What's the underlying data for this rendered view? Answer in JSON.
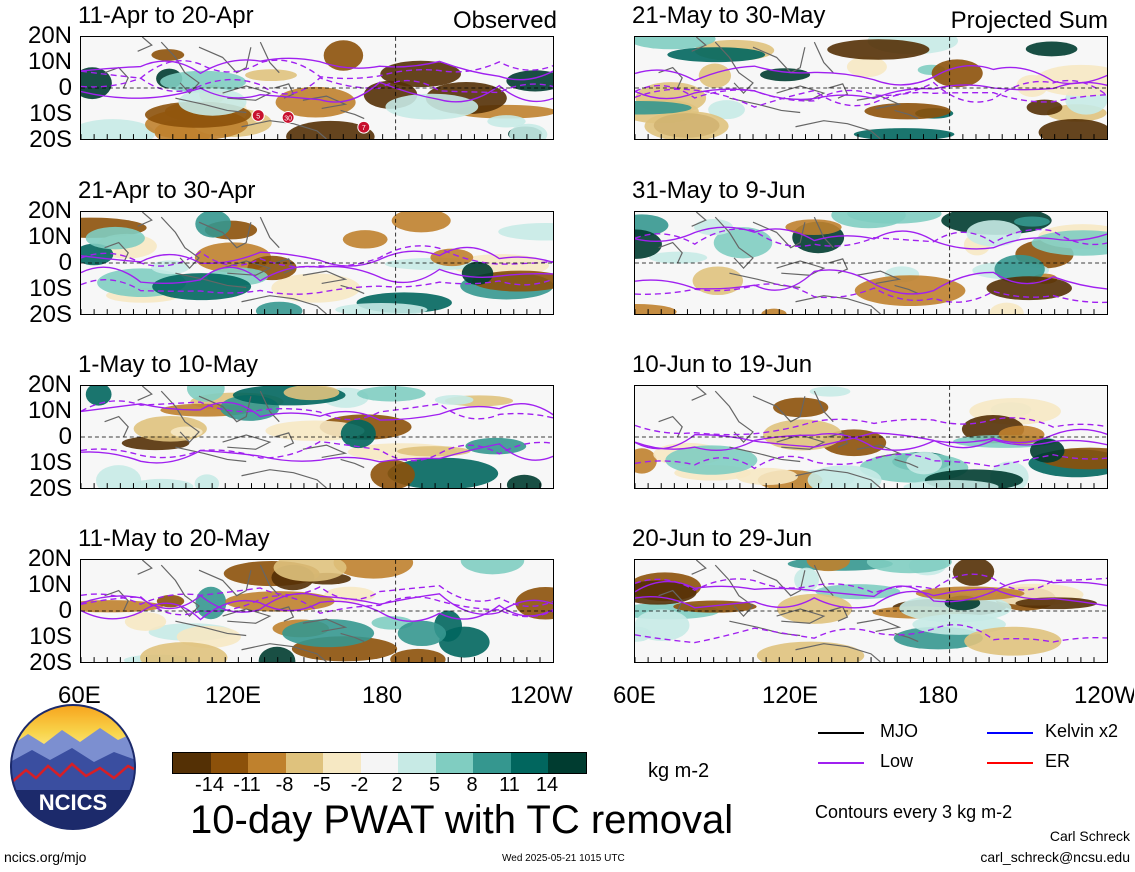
{
  "panels": [
    {
      "title": "11-Apr to 20-Apr",
      "label": "Observed",
      "tc_markers": [
        "5",
        "30",
        "7"
      ]
    },
    {
      "title": "21-May to 30-May",
      "label": "Projected Sum"
    },
    {
      "title": "21-Apr to 30-Apr"
    },
    {
      "title": "31-May to 9-Jun"
    },
    {
      "title": "1-May to 10-May"
    },
    {
      "title": "10-Jun to 19-Jun"
    },
    {
      "title": "11-May to 20-May"
    },
    {
      "title": "20-Jun to 29-Jun"
    }
  ],
  "lat_labels": [
    "20N",
    "10N",
    "0",
    "10S",
    "20S"
  ],
  "lon_labels": [
    "60E",
    "120E",
    "180",
    "120W"
  ],
  "colorbar": {
    "colors": [
      "#543005",
      "#8c510a",
      "#bf812d",
      "#dfc27d",
      "#f6e8c3",
      "#f5f5f5",
      "#c7eae5",
      "#80cdc1",
      "#35978f",
      "#01665e",
      "#003c30"
    ],
    "ticks": [
      "-14",
      "-11",
      "-8",
      "-5",
      "-2",
      "2",
      "5",
      "8",
      "11",
      "14"
    ],
    "units": "kg m-2"
  },
  "title": "10-day PWAT with TC removal",
  "legend": {
    "items": [
      {
        "label": "MJO",
        "color": "#000000"
      },
      {
        "label": "Kelvin x2",
        "color": "#0000ff"
      },
      {
        "label": "Low",
        "color": "#a020f0"
      },
      {
        "label": "ER",
        "color": "#ff0000"
      }
    ],
    "contour_note": "Contours every 3 kg m-2"
  },
  "logo_text": "NCICS",
  "footer": {
    "url": "ncics.org/mjo",
    "timestamp": "Wed 2025-05-21 1015 UTC",
    "author": "Carl Schreck",
    "email": "carl_schreck@ncsu.edu"
  }
}
